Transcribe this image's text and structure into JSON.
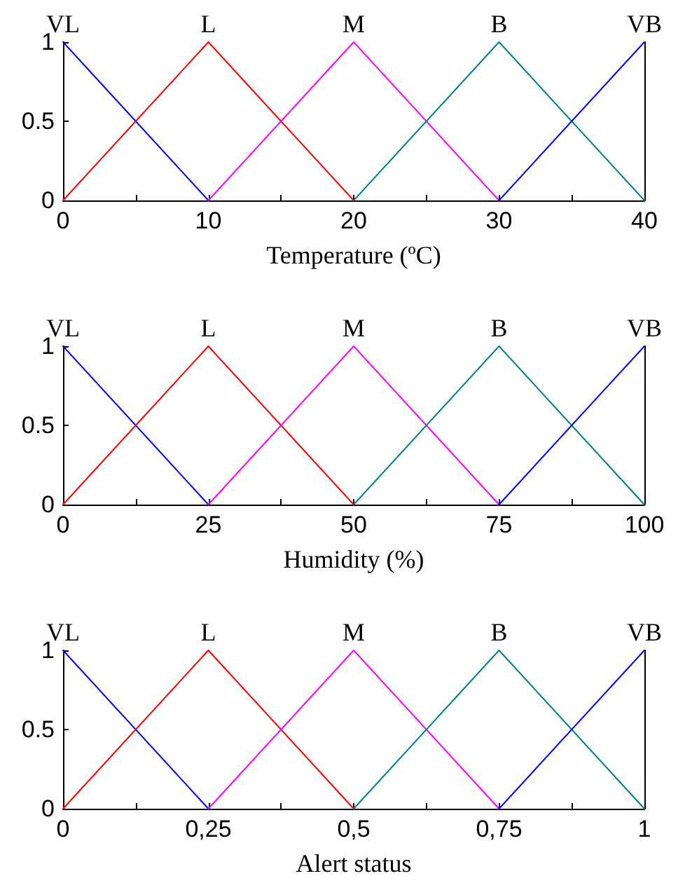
{
  "chart_data": [
    {
      "type": "line",
      "xlabel": "Temperature (ºC)",
      "xlim": [
        0,
        40
      ],
      "xticks": [
        0,
        {
          "value": 5,
          "label": null
        },
        10,
        {
          "value": 15,
          "label": null
        },
        20,
        {
          "value": 25,
          "label": null
        },
        30,
        {
          "value": 35,
          "label": null
        },
        40
      ],
      "ylim": [
        0,
        1
      ],
      "yticks": [
        0,
        0.5,
        1
      ],
      "series": [
        {
          "name": "VL",
          "color": "#0000ff",
          "x": [
            0,
            10
          ],
          "values": [
            1,
            0
          ]
        },
        {
          "name": "L",
          "color": "#ff0000",
          "x": [
            0,
            10,
            20
          ],
          "values": [
            0,
            1,
            0
          ]
        },
        {
          "name": "M",
          "color": "#ff00ff",
          "x": [
            10,
            20,
            30
          ],
          "values": [
            0,
            1,
            0
          ]
        },
        {
          "name": "B",
          "color": "#008080",
          "x": [
            20,
            30,
            40
          ],
          "values": [
            0,
            1,
            0
          ]
        },
        {
          "name": "VB",
          "color": "#0000ff",
          "x": [
            30,
            40
          ],
          "values": [
            0,
            1
          ]
        }
      ]
    },
    {
      "type": "line",
      "xlabel": "Humidity (%)",
      "xlim": [
        0,
        100
      ],
      "xticks": [
        0,
        {
          "value": 12.5,
          "label": null
        },
        25,
        {
          "value": 37.5,
          "label": null
        },
        50,
        {
          "value": 62.5,
          "label": null
        },
        75,
        {
          "value": 87.5,
          "label": null
        },
        100
      ],
      "ylim": [
        0,
        1
      ],
      "yticks": [
        0,
        0.5,
        1
      ],
      "series": [
        {
          "name": "VL",
          "color": "#0000ff",
          "x": [
            0,
            25
          ],
          "values": [
            1,
            0
          ]
        },
        {
          "name": "L",
          "color": "#ff0000",
          "x": [
            0,
            25,
            50
          ],
          "values": [
            0,
            1,
            0
          ]
        },
        {
          "name": "M",
          "color": "#ff00ff",
          "x": [
            25,
            50,
            75
          ],
          "values": [
            0,
            1,
            0
          ]
        },
        {
          "name": "B",
          "color": "#008080",
          "x": [
            50,
            75,
            100
          ],
          "values": [
            0,
            1,
            0
          ]
        },
        {
          "name": "VB",
          "color": "#0000ff",
          "x": [
            75,
            100
          ],
          "values": [
            0,
            1
          ]
        }
      ]
    },
    {
      "type": "line",
      "xlabel": "Alert status",
      "xlim": [
        0,
        1
      ],
      "xticks": [
        0,
        {
          "value": 0.125,
          "label": null
        },
        {
          "value": 0.25,
          "label": "0,25"
        },
        {
          "value": 0.375,
          "label": null
        },
        {
          "value": 0.5,
          "label": "0,5"
        },
        {
          "value": 0.625,
          "label": null
        },
        {
          "value": 0.75,
          "label": "0,75"
        },
        {
          "value": 0.875,
          "label": null
        },
        1
      ],
      "ylim": [
        0,
        1
      ],
      "yticks": [
        0,
        0.5,
        1
      ],
      "series": [
        {
          "name": "VL",
          "color": "#0000ff",
          "x": [
            0,
            0.25
          ],
          "values": [
            1,
            0
          ]
        },
        {
          "name": "L",
          "color": "#ff0000",
          "x": [
            0,
            0.25,
            0.5
          ],
          "values": [
            0,
            1,
            0
          ]
        },
        {
          "name": "M",
          "color": "#ff00ff",
          "x": [
            0.25,
            0.5,
            0.75
          ],
          "values": [
            0,
            1,
            0
          ]
        },
        {
          "name": "B",
          "color": "#008080",
          "x": [
            0.5,
            0.75,
            1
          ],
          "values": [
            0,
            1,
            0
          ]
        },
        {
          "name": "VB",
          "color": "#0000ff",
          "x": [
            0.75,
            1
          ],
          "values": [
            0,
            1
          ]
        }
      ]
    }
  ]
}
